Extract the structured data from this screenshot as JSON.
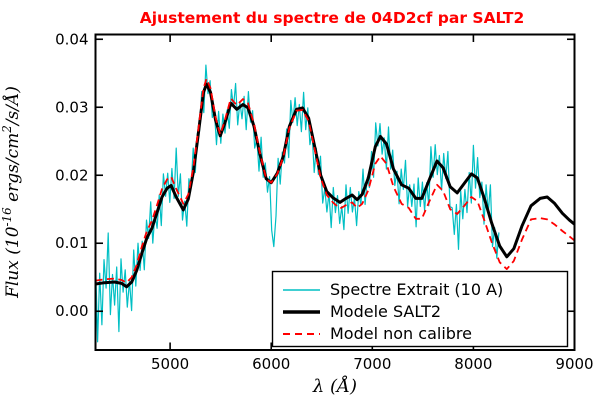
{
  "title": {
    "text": "Ajustement du spectre de 04D2cf par SALT2",
    "color": "#ff0000"
  },
  "legend": {
    "items": [
      {
        "label": "Spectre Extrait (10 A)",
        "color": "#00bfc4",
        "width": 1.5,
        "dash": ""
      },
      {
        "label": "Modele SALT2",
        "color": "#000000",
        "width": 3.5,
        "dash": ""
      },
      {
        "label": "Model non calibre",
        "color": "#ff0000",
        "width": 2,
        "dash": "7 5"
      }
    ]
  },
  "chart_data": {
    "type": "line",
    "title": "Ajustement du spectre de 04D2cf par SALT2",
    "xlabel": "λ (Å)",
    "ylabel": "Flux (10-16 ergs/cm2/s/Å)",
    "ylabel_parts": {
      "pre": "Flux (10",
      "sup1": "-16",
      "mid": " ergs/cm",
      "sup2": "2",
      "suf": "/s/Å)"
    },
    "xlim": [
      4262,
      9000
    ],
    "ylim": [
      -0.0057,
      0.0407
    ],
    "grid": false,
    "legend_position": "lower right",
    "xticks": [
      {
        "v": 5000,
        "label": "5000"
      },
      {
        "v": 6000,
        "label": "6000"
      },
      {
        "v": 7000,
        "label": "7000"
      },
      {
        "v": 8000,
        "label": "8000"
      },
      {
        "v": 9000,
        "label": "9000"
      }
    ],
    "yticks": [
      {
        "v": 0.0,
        "label": "0.00"
      },
      {
        "v": 0.01,
        "label": "0.01"
      },
      {
        "v": 0.02,
        "label": "0.02"
      },
      {
        "v": 0.03,
        "label": "0.03"
      },
      {
        "v": 0.04,
        "label": "0.04"
      }
    ],
    "y_scale": 0.0001,
    "series": [
      {
        "id": "spectre-extrait",
        "name": "Spectre Extrait (10 A)",
        "color": "#00bfc4",
        "width": 1.2,
        "dash": "",
        "x0": 4262,
        "dx": 21,
        "y": [
          78,
          -45,
          56,
          -20,
          76,
          34,
          115,
          -5,
          54,
          9,
          65,
          -30,
          77,
          28,
          61,
          6,
          45,
          1,
          90,
          37,
          100,
          60,
          103,
          61,
          134,
          107,
          161,
          100,
          143,
          122,
          171,
          126,
          202,
          169,
          203,
          160,
          210,
          166,
          240,
          169,
          202,
          134,
          162,
          125,
          195,
          181,
          240,
          204,
          262,
          265,
          323,
          292,
          362,
          320,
          339,
          285,
          294,
          245,
          294,
          247,
          290,
          262,
          296,
          269,
          326,
          300,
          335,
          274,
          308,
          283,
          316,
          267,
          323,
          278,
          295,
          240,
          254,
          206,
          256,
          197,
          218,
          175,
          198,
          119,
          95,
          140,
          225,
          187,
          234,
          218,
          268,
          226,
          310,
          278,
          314,
          273,
          304,
          264,
          322,
          267,
          299,
          245,
          262,
          204,
          240,
          201,
          228,
          159,
          181,
          146,
          174,
          123,
          182,
          145,
          170,
          129,
          154,
          120,
          186,
          144,
          182,
          146,
          167,
          126,
          176,
          156,
          209,
          157,
          197,
          182,
          235,
          197,
          277,
          243,
          276,
          231,
          255,
          209,
          271,
          209,
          237,
          185,
          206,
          158,
          209,
          179,
          222,
          154,
          186,
          154,
          187,
          124,
          196,
          154,
          190,
          148,
          189,
          155,
          242,
          197,
          245,
          201,
          229,
          178,
          232,
          195,
          235,
          154,
          152,
          113,
          157,
          91,
          177,
          136,
          179,
          145,
          204,
          159,
          244,
          181,
          226,
          167,
          190,
          128,
          186,
          145,
          186,
          95,
          123,
          78,
          116
        ]
      },
      {
        "id": "modele-salt2",
        "name": "Modele SALT2",
        "color": "#000000",
        "width": 3,
        "dash": "",
        "points": [
          [
            4262,
            40
          ],
          [
            4350,
            42
          ],
          [
            4450,
            43
          ],
          [
            4520,
            41
          ],
          [
            4570,
            36
          ],
          [
            4620,
            43
          ],
          [
            4670,
            60
          ],
          [
            4720,
            85
          ],
          [
            4770,
            108
          ],
          [
            4820,
            122
          ],
          [
            4870,
            145
          ],
          [
            4920,
            168
          ],
          [
            4970,
            181
          ],
          [
            5010,
            185
          ],
          [
            5060,
            168
          ],
          [
            5130,
            149
          ],
          [
            5180,
            165
          ],
          [
            5230,
            205
          ],
          [
            5280,
            262
          ],
          [
            5330,
            322
          ],
          [
            5360,
            334
          ],
          [
            5400,
            322
          ],
          [
            5450,
            281
          ],
          [
            5495,
            258
          ],
          [
            5540,
            276
          ],
          [
            5600,
            306
          ],
          [
            5660,
            297
          ],
          [
            5720,
            304
          ],
          [
            5770,
            299
          ],
          [
            5830,
            272
          ],
          [
            5890,
            230
          ],
          [
            5950,
            195
          ],
          [
            6000,
            189
          ],
          [
            6060,
            203
          ],
          [
            6120,
            228
          ],
          [
            6180,
            272
          ],
          [
            6250,
            297
          ],
          [
            6310,
            299
          ],
          [
            6370,
            284
          ],
          [
            6430,
            242
          ],
          [
            6490,
            200
          ],
          [
            6550,
            176
          ],
          [
            6610,
            167
          ],
          [
            6680,
            160
          ],
          [
            6740,
            166
          ],
          [
            6800,
            171
          ],
          [
            6850,
            164
          ],
          [
            6900,
            172
          ],
          [
            6960,
            196
          ],
          [
            7030,
            242
          ],
          [
            7080,
            257
          ],
          [
            7140,
            246
          ],
          [
            7210,
            209
          ],
          [
            7290,
            186
          ],
          [
            7360,
            181
          ],
          [
            7430,
            166
          ],
          [
            7490,
            166
          ],
          [
            7560,
            192
          ],
          [
            7640,
            221
          ],
          [
            7700,
            211
          ],
          [
            7770,
            183
          ],
          [
            7840,
            174
          ],
          [
            7910,
            188
          ],
          [
            7980,
            202
          ],
          [
            8040,
            196
          ],
          [
            8110,
            165
          ],
          [
            8180,
            130
          ],
          [
            8260,
            96
          ],
          [
            8330,
            80
          ],
          [
            8400,
            92
          ],
          [
            8480,
            125
          ],
          [
            8570,
            155
          ],
          [
            8660,
            166
          ],
          [
            8730,
            168
          ],
          [
            8800,
            159
          ],
          [
            8880,
            144
          ],
          [
            8950,
            134
          ],
          [
            9000,
            128
          ]
        ]
      },
      {
        "id": "model-non-calibre",
        "name": "Model non calibre",
        "color": "#ff0000",
        "width": 1.8,
        "dash": "7 4.5",
        "points": [
          [
            4262,
            45
          ],
          [
            4350,
            47
          ],
          [
            4450,
            48
          ],
          [
            4520,
            46
          ],
          [
            4570,
            42
          ],
          [
            4620,
            50
          ],
          [
            4670,
            68
          ],
          [
            4720,
            95
          ],
          [
            4770,
            118
          ],
          [
            4820,
            133
          ],
          [
            4870,
            156
          ],
          [
            4920,
            180
          ],
          [
            4970,
            194
          ],
          [
            5010,
            198
          ],
          [
            5060,
            180
          ],
          [
            5130,
            158
          ],
          [
            5180,
            172
          ],
          [
            5230,
            212
          ],
          [
            5280,
            268
          ],
          [
            5330,
            328
          ],
          [
            5360,
            342
          ],
          [
            5400,
            328
          ],
          [
            5450,
            285
          ],
          [
            5495,
            260
          ],
          [
            5540,
            280
          ],
          [
            5600,
            313
          ],
          [
            5660,
            303
          ],
          [
            5720,
            312
          ],
          [
            5770,
            306
          ],
          [
            5830,
            276
          ],
          [
            5890,
            232
          ],
          [
            5950,
            195
          ],
          [
            6000,
            189
          ],
          [
            6060,
            202
          ],
          [
            6120,
            227
          ],
          [
            6180,
            270
          ],
          [
            6250,
            295
          ],
          [
            6310,
            296
          ],
          [
            6370,
            280
          ],
          [
            6430,
            238
          ],
          [
            6490,
            196
          ],
          [
            6550,
            171
          ],
          [
            6610,
            160
          ],
          [
            6680,
            151
          ],
          [
            6740,
            156
          ],
          [
            6800,
            160
          ],
          [
            6850,
            152
          ],
          [
            6900,
            158
          ],
          [
            6960,
            178
          ],
          [
            7030,
            217
          ],
          [
            7080,
            228
          ],
          [
            7140,
            217
          ],
          [
            7210,
            183
          ],
          [
            7290,
            158
          ],
          [
            7360,
            152
          ],
          [
            7430,
            136
          ],
          [
            7490,
            136
          ],
          [
            7560,
            160
          ],
          [
            7640,
            186
          ],
          [
            7700,
            177
          ],
          [
            7770,
            150
          ],
          [
            7840,
            143
          ],
          [
            7910,
            155
          ],
          [
            7980,
            168
          ],
          [
            8040,
            162
          ],
          [
            8110,
            133
          ],
          [
            8180,
            102
          ],
          [
            8260,
            72
          ],
          [
            8330,
            62
          ],
          [
            8400,
            74
          ],
          [
            8480,
            105
          ],
          [
            8570,
            135
          ],
          [
            8660,
            137
          ],
          [
            8730,
            135
          ],
          [
            8800,
            128
          ],
          [
            8880,
            118
          ],
          [
            8950,
            110
          ],
          [
            9000,
            104
          ]
        ]
      }
    ]
  }
}
